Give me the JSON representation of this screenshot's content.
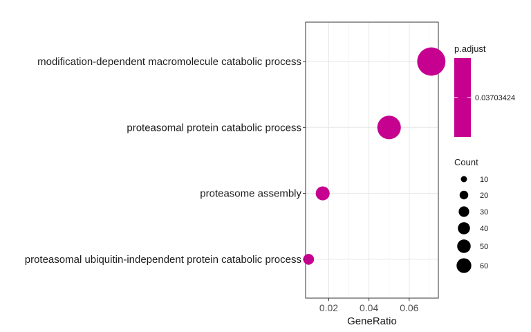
{
  "chart_data": {
    "type": "scatter",
    "title": "",
    "xlabel": "GeneRatio",
    "ylabel": "",
    "xlim": [
      0.0085,
      0.0745
    ],
    "x_ticks": [
      0.02,
      0.04,
      0.06
    ],
    "x_tick_labels": [
      "0.02",
      "0.04",
      "0.06"
    ],
    "grid": true,
    "legend_position": "right",
    "categories": [
      "modification-dependent macromolecule catabolic process",
      "proteasomal protein catabolic process",
      "proteasome assembly",
      "proteasomal ubiquitin-independent protein catabolic process"
    ],
    "points": [
      {
        "term": "modification-dependent macromolecule catabolic process",
        "gene_ratio": 0.071,
        "count": 62,
        "p_adjust": 0.03703424
      },
      {
        "term": "proteasomal protein catabolic process",
        "gene_ratio": 0.05,
        "count": 43,
        "p_adjust": 0.03703424
      },
      {
        "term": "proteasome assembly",
        "gene_ratio": 0.017,
        "count": 15,
        "p_adjust": 0.03703424
      },
      {
        "term": "proteasomal ubiquitin-independent protein catabolic process",
        "gene_ratio": 0.01,
        "count": 9,
        "p_adjust": 0.03703424
      }
    ],
    "point_color": "#c6008f",
    "color_legend": {
      "title": "p.adjust",
      "label": "0.03703424",
      "color": "#c6008f"
    },
    "size_legend": {
      "title": "Count",
      "values": [
        10,
        20,
        30,
        40,
        50,
        60
      ],
      "labels": [
        "10",
        "20",
        "30",
        "40",
        "50",
        "60"
      ]
    }
  }
}
